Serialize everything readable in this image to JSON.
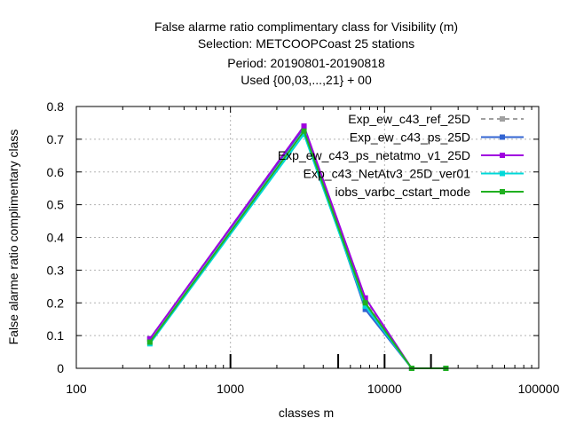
{
  "chart_data": {
    "type": "line",
    "title_lines": [
      "False alarme ratio complimentary class  for Visibility (m)",
      "Selection: METCOOPCoast     25 stations",
      "Period: 20190801-20190818",
      "Used {00,03,...,21} + 00"
    ],
    "xlabel": "classes m",
    "ylabel": "False alarme ratio complimentary class",
    "x_scale": "log",
    "xlim": [
      100,
      100000
    ],
    "ylim": [
      0,
      0.8
    ],
    "x_ticks": [
      100,
      1000,
      10000,
      100000
    ],
    "x_tick_labels": [
      "100",
      "1000",
      "10000",
      "100000"
    ],
    "y_ticks": [
      0,
      0.1,
      0.2,
      0.3,
      0.4,
      0.5,
      0.6,
      0.7,
      0.8
    ],
    "y_tick_labels": [
      "0",
      "0.1",
      "0.2",
      "0.3",
      "0.4",
      "0.5",
      "0.6",
      "0.7",
      "0.8"
    ],
    "grid": true,
    "legend_position": "top-right",
    "class_marks": [
      1000,
      5000,
      10000,
      20000
    ],
    "x": [
      300,
      3000,
      7500,
      15000,
      25000
    ],
    "series": [
      {
        "name": "Exp_ew_c43_ref_25D",
        "color": "#a0a0a0",
        "dashed": true,
        "values": [
          0.09,
          0.74,
          0.21,
          0.0,
          0.0
        ]
      },
      {
        "name": "Exp_ew_c43_ps_25D",
        "color": "#3264d2",
        "dashed": false,
        "values": [
          0.09,
          0.735,
          0.18,
          0.0,
          0.0
        ]
      },
      {
        "name": "Exp_ew_c43_ps_netatmo_v1_25D",
        "color": "#a000e0",
        "dashed": false,
        "values": [
          0.09,
          0.74,
          0.215,
          0.0,
          0.0
        ]
      },
      {
        "name": "Exp_c43_NetAtv3_25D_ver01",
        "color": "#00d8d8",
        "dashed": false,
        "values": [
          0.075,
          0.715,
          0.19,
          0.0,
          0.0
        ]
      },
      {
        "name": "iobs_varbc_cstart_mode",
        "color": "#20b020",
        "dashed": false,
        "values": [
          0.08,
          0.725,
          0.2,
          0.0,
          0.0
        ]
      }
    ]
  }
}
